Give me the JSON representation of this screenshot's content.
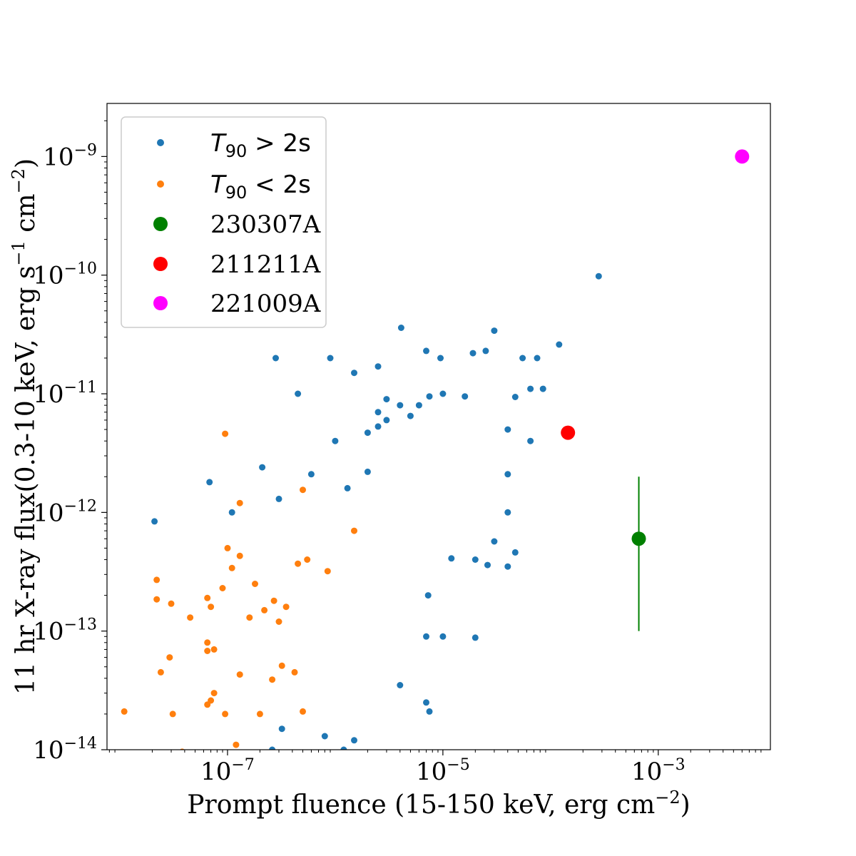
{
  "chart_data": {
    "type": "scatter",
    "xlabel": "Prompt fluence (15-150 keV, erg cm$^{-2}$)",
    "xlabel_parts": {
      "main": "Prompt fluence (15-150 keV, erg cm",
      "sup": "−2",
      "end": ")"
    },
    "ylabel": "11 hr X-ray flux(0.3-10 keV, erg s$^{-1}$ cm$^{-2}$)",
    "ylabel_parts": {
      "a": "11 hr X-ray flux(0.3-10 keV, erg s",
      "sup1": "−1",
      "b": " cm",
      "sup2": "−2",
      "end": ")"
    },
    "x_scale": "log",
    "y_scale": "log",
    "xlim": [
      7.6e-09,
      0.011
    ],
    "ylim": [
      1e-14,
      2.8e-09
    ],
    "x_ticks": [
      {
        "value": 1e-07,
        "base": "10",
        "exp": "−7"
      },
      {
        "value": 1e-05,
        "base": "10",
        "exp": "−5"
      },
      {
        "value": 0.001,
        "base": "10",
        "exp": "−3"
      }
    ],
    "y_ticks": [
      {
        "value": 1e-14,
        "base": "10",
        "exp": "−14"
      },
      {
        "value": 1e-13,
        "base": "10",
        "exp": "−13"
      },
      {
        "value": 1e-12,
        "base": "10",
        "exp": "−12"
      },
      {
        "value": 1e-11,
        "base": "10",
        "exp": "−11"
      },
      {
        "value": 1e-10,
        "base": "10",
        "exp": "−10"
      },
      {
        "value": 1e-09,
        "base": "10",
        "exp": "−9"
      }
    ],
    "legend_position": "upper-left",
    "legend": [
      {
        "label_main": "T",
        "label_sub": "90",
        "label_rest": " > 2s",
        "color": "#1f77b4",
        "marker": "small"
      },
      {
        "label_main": "T",
        "label_sub": "90",
        "label_rest": " < 2s",
        "color": "#ff7f0e",
        "marker": "small"
      },
      {
        "label": "230307A",
        "color": "#008000",
        "marker": "large"
      },
      {
        "label": "211211A",
        "color": "#ff0000",
        "marker": "large"
      },
      {
        "label": "221009A",
        "color": "#ff00ff",
        "marker": "large"
      }
    ],
    "series": [
      {
        "name": "T90 > 2s",
        "color": "#1f77b4",
        "sample_points_note_excluded": true,
        "points": [
          [
            2.1e-08,
            8.4e-13
          ],
          [
            6.8e-08,
            1.8e-12
          ],
          [
            2.8e-07,
            2e-11
          ],
          [
            9e-07,
            2e-11
          ],
          [
            4.1e-06,
            3.6e-11
          ],
          [
            1.5e-06,
            1.5e-11
          ],
          [
            2.5e-06,
            1.7e-11
          ],
          [
            4.5e-07,
            1e-11
          ],
          [
            7e-06,
            2.3e-11
          ],
          [
            9.5e-06,
            2e-11
          ],
          [
            1.9e-05,
            2.2e-11
          ],
          [
            2.5e-05,
            2.3e-11
          ],
          [
            3e-05,
            3.4e-11
          ],
          [
            5.5e-05,
            2e-11
          ],
          [
            7.5e-05,
            2e-11
          ],
          [
            0.00012,
            2.6e-11
          ],
          [
            0.00028,
            9.8e-11
          ],
          [
            6.5e-05,
            1.1e-11
          ],
          [
            8.5e-05,
            1.1e-11
          ],
          [
            4.7e-05,
            9.4e-12
          ],
          [
            1e-05,
            1e-11
          ],
          [
            1.6e-05,
            9.5e-12
          ],
          [
            6.5e-05,
            4e-12
          ],
          [
            4e-05,
            5e-12
          ],
          [
            4e-05,
            2.1e-12
          ],
          [
            4e-05,
            1e-12
          ],
          [
            3e-05,
            5.7e-13
          ],
          [
            4.7e-05,
            4.6e-13
          ],
          [
            4e-05,
            3.5e-13
          ],
          [
            2.6e-05,
            3.6e-13
          ],
          [
            2e-05,
            4e-13
          ],
          [
            1.2e-05,
            4.1e-13
          ],
          [
            7.3e-06,
            2e-13
          ],
          [
            1e-05,
            9e-14
          ],
          [
            2e-05,
            8.8e-14
          ],
          [
            7e-06,
            9e-14
          ],
          [
            4e-06,
            3.5e-14
          ],
          [
            7e-06,
            2.5e-14
          ],
          [
            7.5e-06,
            2.1e-14
          ],
          [
            1.5e-06,
            1.2e-14
          ],
          [
            1.2e-06,
            1e-14
          ],
          [
            2.6e-07,
            1e-14
          ],
          [
            3.2e-07,
            1.5e-14
          ],
          [
            8e-07,
            1.3e-14
          ],
          [
            1.1e-07,
            1e-12
          ],
          [
            3e-07,
            1.3e-12
          ],
          [
            2.1e-07,
            2.4e-12
          ],
          [
            1.3e-06,
            1.6e-12
          ],
          [
            2e-06,
            2.2e-12
          ],
          [
            6e-07,
            2.1e-12
          ],
          [
            1e-06,
            4e-12
          ],
          [
            2e-06,
            4.7e-12
          ],
          [
            2.5e-06,
            5.3e-12
          ],
          [
            3e-06,
            6e-12
          ],
          [
            5e-06,
            6.5e-12
          ],
          [
            6e-06,
            8e-12
          ],
          [
            7.5e-06,
            9.5e-12
          ],
          [
            4e-06,
            8e-12
          ],
          [
            3e-06,
            9e-12
          ],
          [
            2.5e-06,
            7e-12
          ]
        ]
      },
      {
        "name": "T90 < 2s",
        "color": "#ff7f0e",
        "points": [
          [
            9.5e-08,
            4.6e-12
          ],
          [
            1.3e-07,
            1.2e-12
          ],
          [
            5e-07,
            1.55e-12
          ],
          [
            1.5e-06,
            7e-13
          ],
          [
            1e-07,
            5e-13
          ],
          [
            1.1e-07,
            3.4e-13
          ],
          [
            9e-08,
            2.3e-13
          ],
          [
            1.3e-07,
            4.3e-13
          ],
          [
            2.2e-08,
            2.7e-13
          ],
          [
            2.2e-08,
            1.85e-13
          ],
          [
            3e-08,
            1.7e-13
          ],
          [
            6.5e-08,
            1.9e-13
          ],
          [
            7e-08,
            1.6e-13
          ],
          [
            4.5e-08,
            1.3e-13
          ],
          [
            6.5e-08,
            8e-14
          ],
          [
            7.5e-08,
            7e-14
          ],
          [
            6.5e-08,
            6.8e-14
          ],
          [
            2.9e-08,
            6e-14
          ],
          [
            2.4e-08,
            4.5e-14
          ],
          [
            7.5e-08,
            3e-14
          ],
          [
            6.5e-08,
            2.4e-14
          ],
          [
            7e-08,
            2.6e-14
          ],
          [
            9.5e-08,
            2e-14
          ],
          [
            1.1e-08,
            2.1e-14
          ],
          [
            3.1e-08,
            2e-14
          ],
          [
            1.3e-07,
            4.3e-14
          ],
          [
            2e-07,
            2e-14
          ],
          [
            1.2e-07,
            1.1e-14
          ],
          [
            5e-07,
            2.1e-14
          ],
          [
            3.8e-08,
            9.6e-15
          ],
          [
            1.6e-07,
            1.3e-13
          ],
          [
            1.8e-07,
            2.5e-13
          ],
          [
            2.2e-07,
            1.5e-13
          ],
          [
            2.7e-07,
            1.8e-13
          ],
          [
            3e-07,
            1.2e-13
          ],
          [
            4.5e-07,
            3.7e-13
          ],
          [
            5.5e-07,
            4e-13
          ],
          [
            8.5e-07,
            3.2e-13
          ],
          [
            3.5e-07,
            1.6e-13
          ],
          [
            3.2e-07,
            5.1e-14
          ],
          [
            4.2e-07,
            4.5e-14
          ],
          [
            2.6e-07,
            3.9e-14
          ]
        ]
      },
      {
        "name": "230307A",
        "color": "#008000",
        "points": [
          [
            0.00066,
            6e-13
          ]
        ],
        "yerr": [
          [
            1e-13,
            2e-12
          ]
        ]
      },
      {
        "name": "211211A",
        "color": "#ff0000",
        "points": [
          [
            0.000145,
            4.7e-12
          ]
        ]
      },
      {
        "name": "221009A",
        "color": "#ff00ff",
        "points": [
          [
            0.006,
            1e-09
          ]
        ]
      }
    ]
  }
}
